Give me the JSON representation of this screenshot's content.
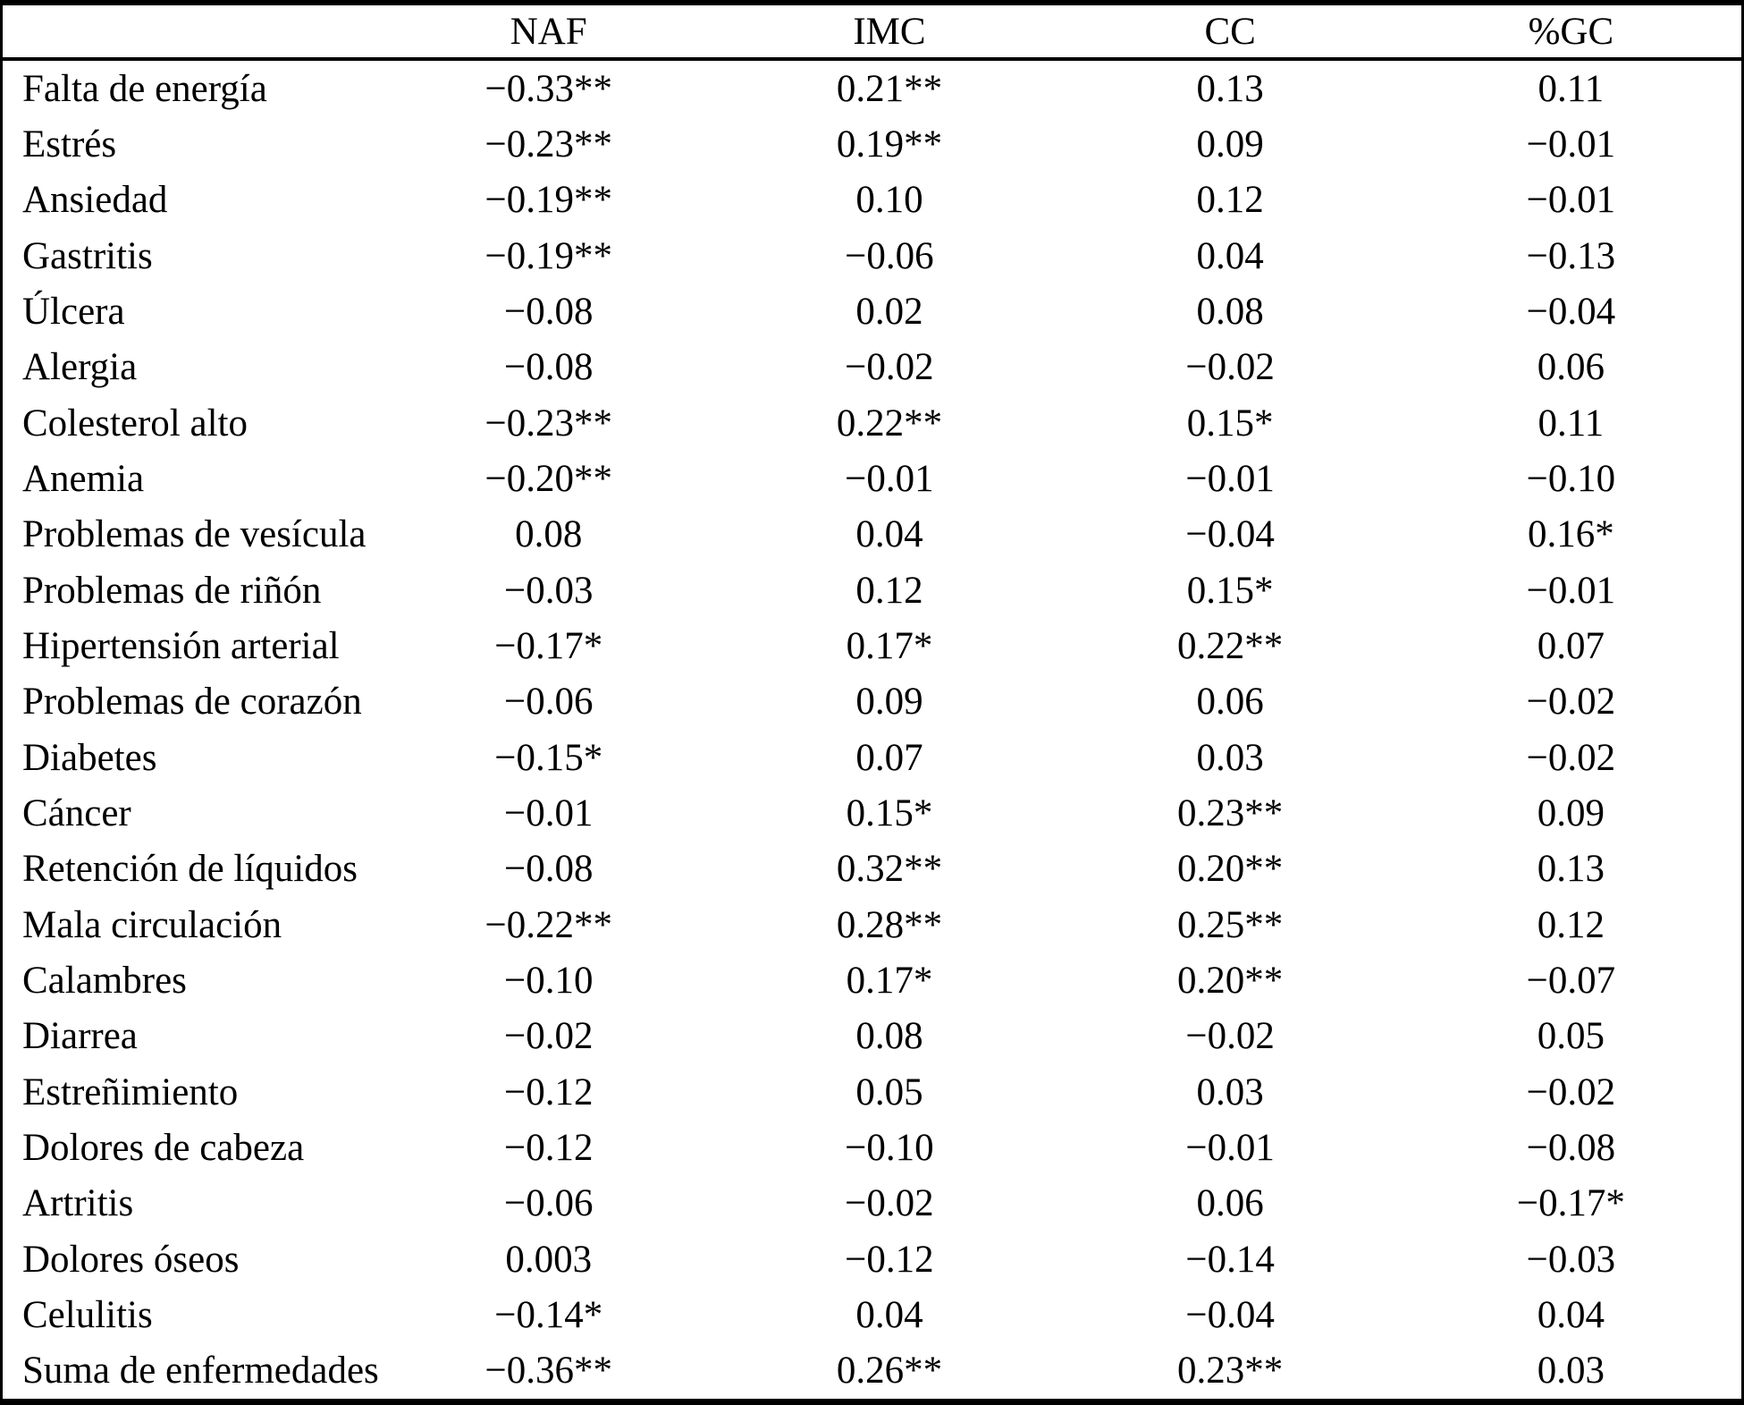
{
  "table": {
    "columns": [
      "NAF",
      "IMC",
      "CC",
      "%GC"
    ],
    "rows": [
      {
        "label": "Falta de energía",
        "values": [
          "−0.33**",
          "0.21**",
          "0.13",
          "0.11"
        ]
      },
      {
        "label": "Estrés",
        "values": [
          "−0.23**",
          "0.19**",
          "0.09",
          "−0.01"
        ]
      },
      {
        "label": "Ansiedad",
        "values": [
          "−0.19**",
          "0.10",
          "0.12",
          "−0.01"
        ]
      },
      {
        "label": "Gastritis",
        "values": [
          "−0.19**",
          "−0.06",
          "0.04",
          "−0.13"
        ]
      },
      {
        "label": "Úlcera",
        "values": [
          "−0.08",
          "0.02",
          "0.08",
          "−0.04"
        ]
      },
      {
        "label": "Alergia",
        "values": [
          "−0.08",
          "−0.02",
          "−0.02",
          "0.06"
        ]
      },
      {
        "label": "Colesterol alto",
        "values": [
          "−0.23**",
          "0.22**",
          "0.15*",
          "0.11"
        ]
      },
      {
        "label": "Anemia",
        "values": [
          "−0.20**",
          "−0.01",
          "−0.01",
          "−0.10"
        ]
      },
      {
        "label": "Problemas de vesícula",
        "values": [
          "0.08",
          "0.04",
          "−0.04",
          "0.16*"
        ]
      },
      {
        "label": "Problemas de riñón",
        "values": [
          "−0.03",
          "0.12",
          "0.15*",
          "−0.01"
        ]
      },
      {
        "label": "Hipertensión arterial",
        "values": [
          "−0.17*",
          "0.17*",
          "0.22**",
          "0.07"
        ]
      },
      {
        "label": "Problemas de corazón",
        "values": [
          "−0.06",
          "0.09",
          "0.06",
          "−0.02"
        ]
      },
      {
        "label": "Diabetes",
        "values": [
          "−0.15*",
          "0.07",
          "0.03",
          "−0.02"
        ]
      },
      {
        "label": "Cáncer",
        "values": [
          "−0.01",
          "0.15*",
          "0.23**",
          "0.09"
        ]
      },
      {
        "label": "Retención de líquidos",
        "values": [
          "−0.08",
          "0.32**",
          "0.20**",
          "0.13"
        ]
      },
      {
        "label": "Mala circulación",
        "values": [
          "−0.22**",
          "0.28**",
          "0.25**",
          "0.12"
        ]
      },
      {
        "label": "Calambres",
        "values": [
          "−0.10",
          "0.17*",
          "0.20**",
          "−0.07"
        ]
      },
      {
        "label": "Diarrea",
        "values": [
          "−0.02",
          "0.08",
          "−0.02",
          "0.05"
        ]
      },
      {
        "label": "Estreñimiento",
        "values": [
          "−0.12",
          "0.05",
          "0.03",
          "−0.02"
        ]
      },
      {
        "label": "Dolores de cabeza",
        "values": [
          "−0.12",
          "−0.10",
          "−0.01",
          "−0.08"
        ]
      },
      {
        "label": "Artritis",
        "values": [
          "−0.06",
          "−0.02",
          "0.06",
          "−0.17*"
        ]
      },
      {
        "label": "Dolores óseos",
        "values": [
          "0.003",
          "−0.12",
          "−0.14",
          "−0.03"
        ]
      },
      {
        "label": "Celulitis",
        "values": [
          "−0.14*",
          "0.04",
          "−0.04",
          "0.04"
        ]
      },
      {
        "label": "Suma de enfermedades",
        "values": [
          "−0.36**",
          "0.26**",
          "0.23**",
          "0.03"
        ]
      }
    ]
  },
  "colors": {
    "border": "#000000",
    "text": "#000000",
    "background": "#ffffff"
  }
}
